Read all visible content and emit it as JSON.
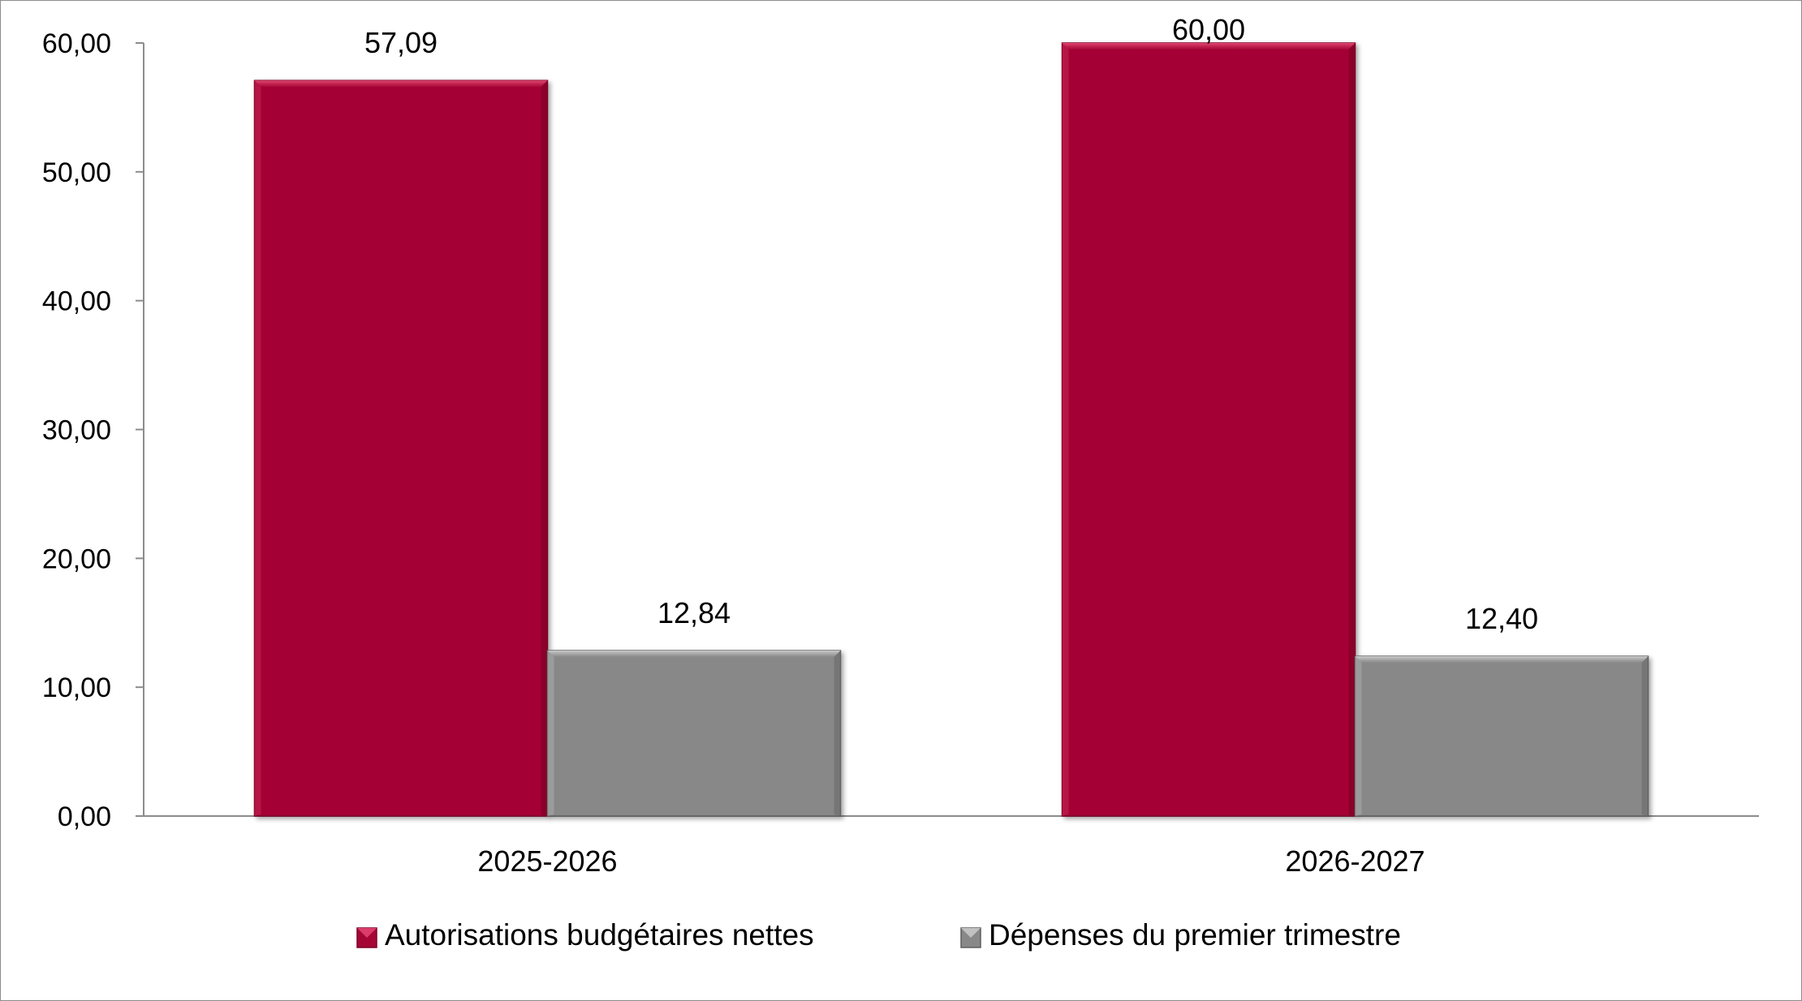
{
  "chart_data": {
    "type": "bar",
    "categories": [
      "2025-2026",
      "2026-2027"
    ],
    "series": [
      {
        "name": "Autorisations budgétaires nettes",
        "values": [
          57.09,
          60.0
        ],
        "labels": [
          "57,09",
          "60,00"
        ],
        "color": "#a50636"
      },
      {
        "name": "Dépenses du premier trimestre",
        "values": [
          12.84,
          12.4
        ],
        "labels": [
          "12,84",
          "12,40"
        ],
        "color": "#888888"
      }
    ],
    "ylim": [
      0,
      60
    ],
    "yticks": [
      0,
      10,
      20,
      30,
      40,
      50,
      60
    ],
    "ytick_labels": [
      "0,00",
      "10,00",
      "20,00",
      "30,00",
      "40,00",
      "50,00",
      "60,00"
    ],
    "legend_position": "bottom",
    "grid": false,
    "title": "",
    "xlabel": "",
    "ylabel": ""
  }
}
